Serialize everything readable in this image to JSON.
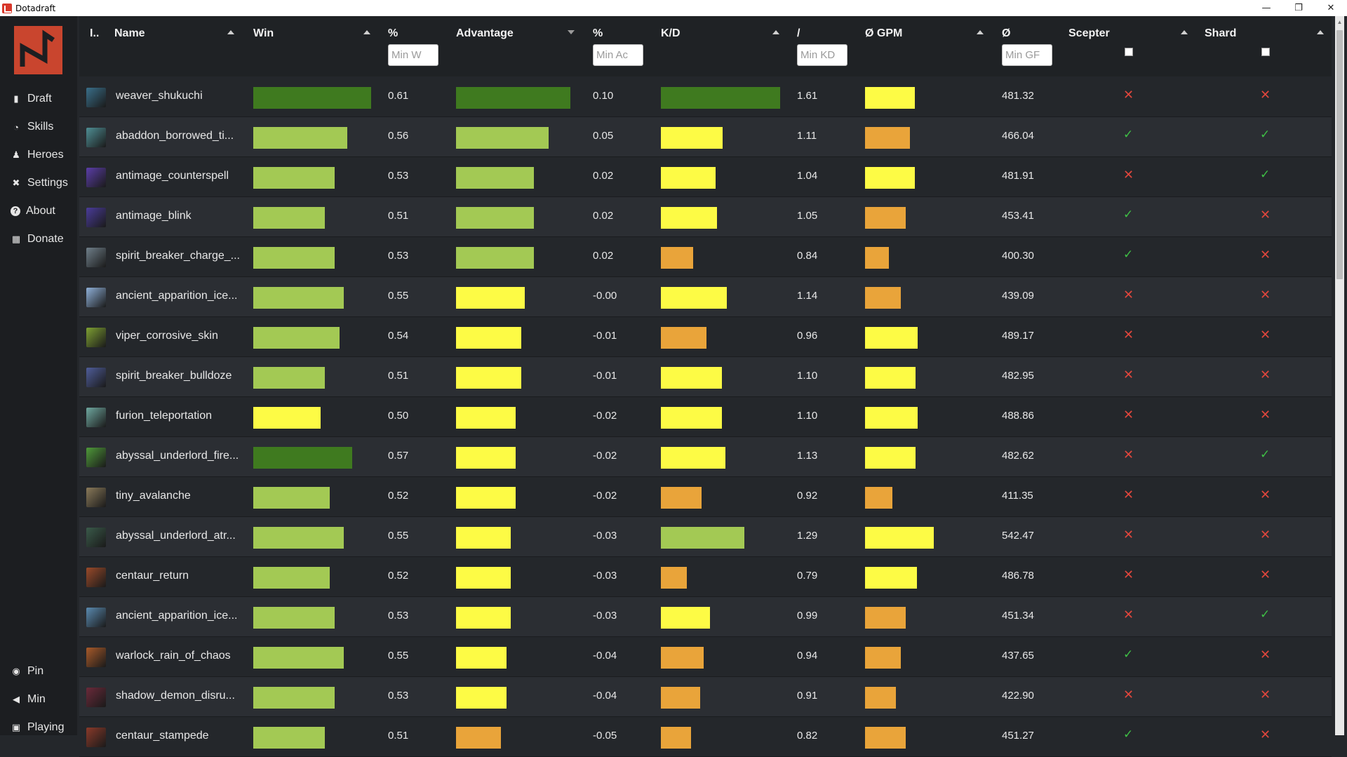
{
  "window": {
    "title": "Dotadraft"
  },
  "sidebar": {
    "nav": [
      {
        "label": "Draft",
        "icon": "bar-chart-icon"
      },
      {
        "label": "Skills",
        "icon": "pie-chart-icon"
      },
      {
        "label": "Heroes",
        "icon": "users-icon"
      },
      {
        "label": "Settings",
        "icon": "tools-icon"
      },
      {
        "label": "About",
        "icon": "question-icon"
      },
      {
        "label": "Donate",
        "icon": "money-icon"
      }
    ],
    "bottom": [
      {
        "label": "Pin",
        "icon": "toggle-icon"
      },
      {
        "label": "Min",
        "icon": "caret-left-icon"
      },
      {
        "label": "Playing",
        "icon": "gamepad-icon"
      }
    ]
  },
  "table": {
    "headers": {
      "index": "I..",
      "name": "Name",
      "win": "Win",
      "win_pct": "%",
      "advantage": "Advantage",
      "adv_pct": "%",
      "kd": "K/D",
      "kd_slash": "/",
      "gpm": "Ø GPM",
      "gpm_avg": "Ø",
      "scepter": "Scepter",
      "shard": "Shard"
    },
    "filters": {
      "min_win": "Min W",
      "min_adv": "Min Ac",
      "min_kd": "Min KD",
      "min_gpm": "Min GF"
    },
    "colors": {
      "dark_green": "#3f7a1f",
      "light_green": "#a3c954",
      "yellow": "#fdfb45",
      "orange": "#e9a43a"
    },
    "rows": [
      {
        "name": "weaver_shukuchi",
        "icon": "#3a6f8a",
        "win": "0.61",
        "win_bar": 1.0,
        "win_color": "dark_green",
        "adv": "0.10",
        "adv_bar": 1.0,
        "adv_color": "dark_green",
        "kd": "1.61",
        "kd_bar": 1.0,
        "kd_color": "dark_green",
        "gpm": "481.32",
        "gpm_bar": 0.72,
        "gpm_color": "yellow",
        "scepter": false,
        "shard": false
      },
      {
        "name": "abaddon_borrowed_ti...",
        "icon": "#4f8f95",
        "win": "0.56",
        "win_bar": 0.8,
        "win_color": "light_green",
        "adv": "0.05",
        "adv_bar": 0.81,
        "adv_color": "light_green",
        "kd": "1.11",
        "kd_bar": 0.52,
        "kd_color": "yellow",
        "gpm": "466.04",
        "gpm_bar": 0.65,
        "gpm_color": "orange",
        "scepter": true,
        "shard": true
      },
      {
        "name": "antimage_counterspell",
        "icon": "#5b3ea8",
        "win": "0.53",
        "win_bar": 0.69,
        "win_color": "light_green",
        "adv": "0.02",
        "adv_bar": 0.68,
        "adv_color": "light_green",
        "kd": "1.04",
        "kd_bar": 0.46,
        "kd_color": "yellow",
        "gpm": "481.91",
        "gpm_bar": 0.72,
        "gpm_color": "yellow",
        "scepter": false,
        "shard": true
      },
      {
        "name": "antimage_blink",
        "icon": "#4a3c9a",
        "win": "0.51",
        "win_bar": 0.61,
        "win_color": "light_green",
        "adv": "0.02",
        "adv_bar": 0.68,
        "adv_color": "light_green",
        "kd": "1.05",
        "kd_bar": 0.47,
        "kd_color": "yellow",
        "gpm": "453.41",
        "gpm_bar": 0.59,
        "gpm_color": "orange",
        "scepter": true,
        "shard": false
      },
      {
        "name": "spirit_breaker_charge_...",
        "icon": "#6f7f8a",
        "win": "0.53",
        "win_bar": 0.69,
        "win_color": "light_green",
        "adv": "0.02",
        "adv_bar": 0.68,
        "adv_color": "light_green",
        "kd": "0.84",
        "kd_bar": 0.27,
        "kd_color": "orange",
        "gpm": "400.30",
        "gpm_bar": 0.35,
        "gpm_color": "orange",
        "scepter": true,
        "shard": false
      },
      {
        "name": "ancient_apparition_ice...",
        "icon": "#8fb0d8",
        "win": "0.55",
        "win_bar": 0.77,
        "win_color": "light_green",
        "adv": "-0.00",
        "adv_bar": 0.6,
        "adv_color": "yellow",
        "kd": "1.14",
        "kd_bar": 0.55,
        "kd_color": "yellow",
        "gpm": "439.09",
        "gpm_bar": 0.52,
        "gpm_color": "orange",
        "scepter": false,
        "shard": false
      },
      {
        "name": "viper_corrosive_skin",
        "icon": "#7ea033",
        "win": "0.54",
        "win_bar": 0.73,
        "win_color": "light_green",
        "adv": "-0.01",
        "adv_bar": 0.57,
        "adv_color": "yellow",
        "kd": "0.96",
        "kd_bar": 0.38,
        "kd_color": "orange",
        "gpm": "489.17",
        "gpm_bar": 0.77,
        "gpm_color": "yellow",
        "scepter": false,
        "shard": false
      },
      {
        "name": "spirit_breaker_bulldoze",
        "icon": "#4f5d9a",
        "win": "0.51",
        "win_bar": 0.61,
        "win_color": "light_green",
        "adv": "-0.01",
        "adv_bar": 0.57,
        "adv_color": "yellow",
        "kd": "1.10",
        "kd_bar": 0.51,
        "kd_color": "yellow",
        "gpm": "482.95",
        "gpm_bar": 0.73,
        "gpm_color": "yellow",
        "scepter": false,
        "shard": false
      },
      {
        "name": "furion_teleportation",
        "icon": "#6fa8a0",
        "win": "0.50",
        "win_bar": 0.57,
        "win_color": "yellow",
        "adv": "-0.02",
        "adv_bar": 0.52,
        "adv_color": "yellow",
        "kd": "1.10",
        "kd_bar": 0.51,
        "kd_color": "yellow",
        "gpm": "488.86",
        "gpm_bar": 0.77,
        "gpm_color": "yellow",
        "scepter": false,
        "shard": false
      },
      {
        "name": "abyssal_underlord_fire...",
        "icon": "#4f9a3a",
        "win": "0.57",
        "win_bar": 0.84,
        "win_color": "dark_green",
        "adv": "-0.02",
        "adv_bar": 0.52,
        "adv_color": "yellow",
        "kd": "1.13",
        "kd_bar": 0.54,
        "kd_color": "yellow",
        "gpm": "482.62",
        "gpm_bar": 0.73,
        "gpm_color": "yellow",
        "scepter": false,
        "shard": true
      },
      {
        "name": "tiny_avalanche",
        "icon": "#8a7a5a",
        "win": "0.52",
        "win_bar": 0.65,
        "win_color": "light_green",
        "adv": "-0.02",
        "adv_bar": 0.52,
        "adv_color": "yellow",
        "kd": "0.92",
        "kd_bar": 0.34,
        "kd_color": "orange",
        "gpm": "411.35",
        "gpm_bar": 0.4,
        "gpm_color": "orange",
        "scepter": false,
        "shard": false
      },
      {
        "name": "abyssal_underlord_atr...",
        "icon": "#3a5a4a",
        "win": "0.55",
        "win_bar": 0.77,
        "win_color": "light_green",
        "adv": "-0.03",
        "adv_bar": 0.48,
        "adv_color": "yellow",
        "kd": "1.29",
        "kd_bar": 0.7,
        "kd_color": "light_green",
        "gpm": "542.47",
        "gpm_bar": 1.0,
        "gpm_color": "yellow",
        "scepter": false,
        "shard": false
      },
      {
        "name": "centaur_return",
        "icon": "#9a4a2a",
        "win": "0.52",
        "win_bar": 0.65,
        "win_color": "light_green",
        "adv": "-0.03",
        "adv_bar": 0.48,
        "adv_color": "yellow",
        "kd": "0.79",
        "kd_bar": 0.22,
        "kd_color": "orange",
        "gpm": "486.78",
        "gpm_bar": 0.75,
        "gpm_color": "yellow",
        "scepter": false,
        "shard": false
      },
      {
        "name": "ancient_apparition_ice...",
        "icon": "#5a8ab0",
        "win": "0.53",
        "win_bar": 0.69,
        "win_color": "light_green",
        "adv": "-0.03",
        "adv_bar": 0.48,
        "adv_color": "yellow",
        "kd": "0.99",
        "kd_bar": 0.41,
        "kd_color": "yellow",
        "gpm": "451.34",
        "gpm_bar": 0.59,
        "gpm_color": "orange",
        "scepter": false,
        "shard": true
      },
      {
        "name": "warlock_rain_of_chaos",
        "icon": "#a85a2a",
        "win": "0.55",
        "win_bar": 0.77,
        "win_color": "light_green",
        "adv": "-0.04",
        "adv_bar": 0.44,
        "adv_color": "yellow",
        "kd": "0.94",
        "kd_bar": 0.36,
        "kd_color": "orange",
        "gpm": "437.65",
        "gpm_bar": 0.52,
        "gpm_color": "orange",
        "scepter": true,
        "shard": false
      },
      {
        "name": "shadow_demon_disru...",
        "icon": "#6a2a3a",
        "win": "0.53",
        "win_bar": 0.69,
        "win_color": "light_green",
        "adv": "-0.04",
        "adv_bar": 0.44,
        "adv_color": "yellow",
        "kd": "0.91",
        "kd_bar": 0.33,
        "kd_color": "orange",
        "gpm": "422.90",
        "gpm_bar": 0.45,
        "gpm_color": "orange",
        "scepter": false,
        "shard": false
      },
      {
        "name": "centaur_stampede",
        "icon": "#8a3a2a",
        "win": "0.51",
        "win_bar": 0.61,
        "win_color": "light_green",
        "adv": "-0.05",
        "adv_bar": 0.39,
        "adv_color": "orange",
        "kd": "0.82",
        "kd_bar": 0.25,
        "kd_color": "orange",
        "gpm": "451.27",
        "gpm_bar": 0.59,
        "gpm_color": "orange",
        "scepter": true,
        "shard": false
      }
    ]
  }
}
